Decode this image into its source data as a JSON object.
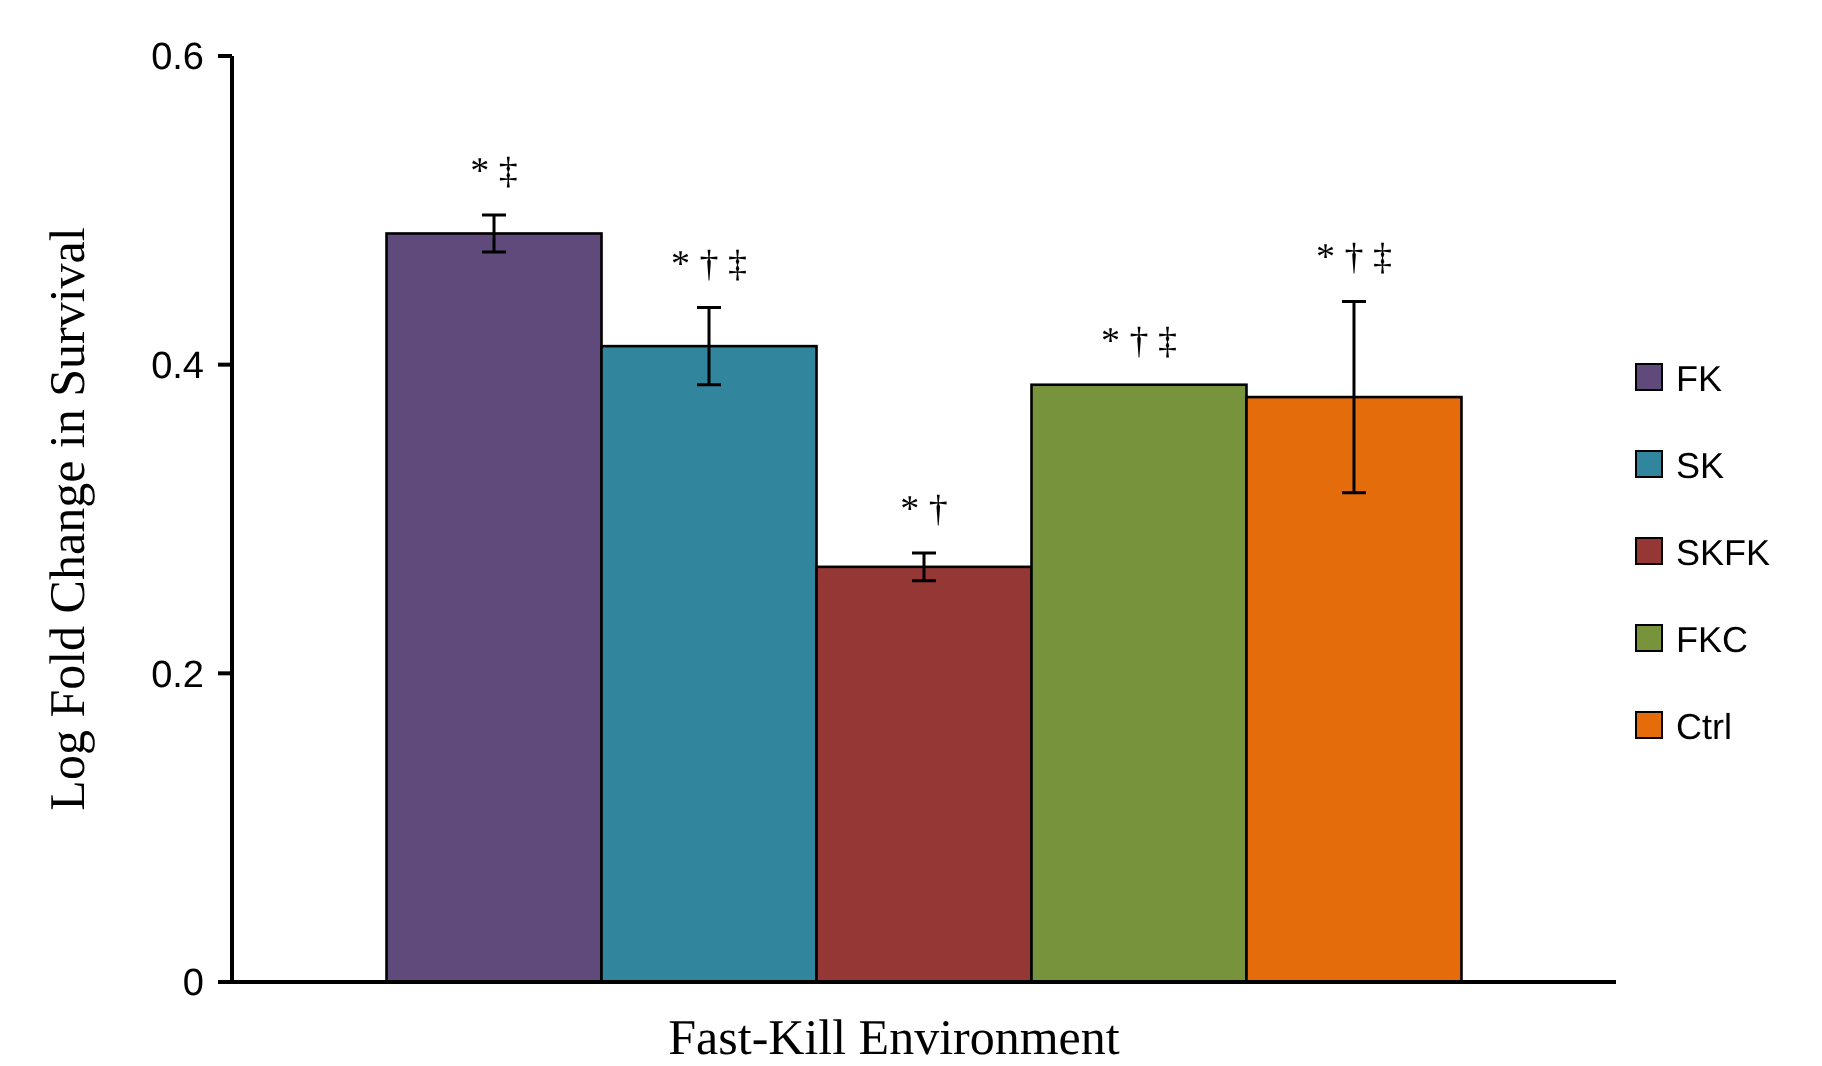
{
  "chart_data": {
    "type": "bar",
    "xlabel": "Fast-Kill Environment",
    "ylabel": "Log Fold Change in Survival",
    "categories": [
      null
    ],
    "series": [
      {
        "name": "FK",
        "color": "#604a7b",
        "values": [
          0.485
        ],
        "errors": [
          0.012
        ]
      },
      {
        "name": "SK",
        "color": "#31859c",
        "values": [
          0.412
        ],
        "errors": [
          0.025
        ]
      },
      {
        "name": "SKFK",
        "color": "#953735",
        "values": [
          0.269
        ],
        "errors": [
          0.009
        ]
      },
      {
        "name": "FKC",
        "color": "#77933c",
        "values": [
          0.387
        ],
        "errors": [
          null
        ]
      },
      {
        "name": "Ctrl",
        "color": "#e46c0a",
        "values": [
          0.379
        ],
        "errors": [
          0.062
        ]
      }
    ],
    "annotations": [
      "* ‡",
      "* † ‡",
      "* †",
      "* † ‡",
      "* † ‡"
    ],
    "ylim": [
      0,
      0.6
    ],
    "yticks": [
      0,
      0.2,
      0.4,
      0.6
    ],
    "legend": "right",
    "grid": false
  }
}
